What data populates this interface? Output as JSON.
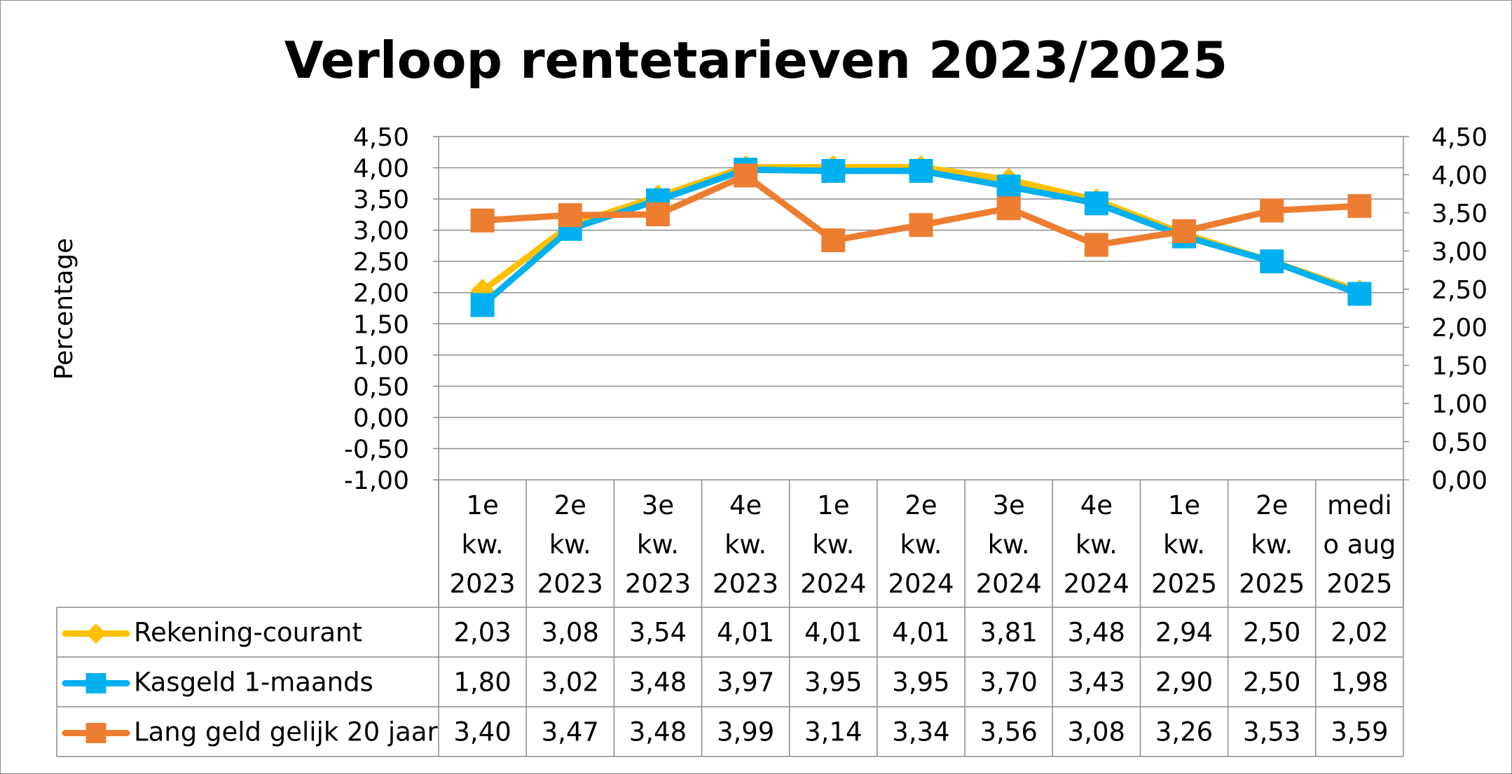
{
  "chart_data": {
    "type": "line",
    "title": "Verloop rentetarieven 2023/2025",
    "ylabel": "Percentage",
    "xlabel": "",
    "categories": [
      [
        "1e",
        "kw.",
        "2023"
      ],
      [
        "2e",
        "kw.",
        "2023"
      ],
      [
        "3e",
        "kw.",
        "2023"
      ],
      [
        "4e",
        "kw.",
        "2023"
      ],
      [
        "1e",
        "kw.",
        "2024"
      ],
      [
        "2e",
        "kw.",
        "2024"
      ],
      [
        "3e",
        "kw.",
        "2024"
      ],
      [
        "4e",
        "kw.",
        "2024"
      ],
      [
        "1e",
        "kw.",
        "2025"
      ],
      [
        "2e",
        "kw.",
        "2025"
      ],
      [
        "medi",
        "o aug",
        "2025"
      ]
    ],
    "y_left": {
      "min": -1.0,
      "max": 4.5,
      "step": 0.5,
      "ticks": [
        "-1,00",
        "-0,50",
        "0,00",
        "0,50",
        "1,00",
        "1,50",
        "2,00",
        "2,50",
        "3,00",
        "3,50",
        "4,00",
        "4,50"
      ]
    },
    "y_right": {
      "min": 0.0,
      "max": 4.5,
      "step": 0.5,
      "ticks": [
        "0,00",
        "0,50",
        "1,00",
        "1,50",
        "2,00",
        "2,50",
        "3,00",
        "3,50",
        "4,00",
        "4,50"
      ]
    },
    "grid": true,
    "legend": "data-table",
    "series": [
      {
        "name": "Rekening-courant",
        "color": "#FFC000",
        "marker": "diamond",
        "axis": "left",
        "values": [
          2.03,
          3.08,
          3.54,
          4.01,
          4.01,
          4.01,
          3.81,
          3.48,
          2.94,
          2.5,
          2.02
        ],
        "labels": [
          "2,03",
          "3,08",
          "3,54",
          "4,01",
          "4,01",
          "4,01",
          "3,81",
          "3,48",
          "2,94",
          "2,50",
          "2,02"
        ]
      },
      {
        "name": "Kasgeld 1-maands",
        "color": "#00B0F0",
        "marker": "square",
        "axis": "left",
        "values": [
          1.8,
          3.02,
          3.48,
          3.97,
          3.95,
          3.95,
          3.7,
          3.43,
          2.9,
          2.5,
          1.98
        ],
        "labels": [
          "1,80",
          "3,02",
          "3,48",
          "3,97",
          "3,95",
          "3,95",
          "3,70",
          "3,43",
          "2,90",
          "2,50",
          "1,98"
        ]
      },
      {
        "name": "Lang geld gelijk 20 jaar",
        "color": "#ED7D31",
        "marker": "square",
        "axis": "right",
        "values": [
          3.4,
          3.47,
          3.48,
          3.99,
          3.14,
          3.34,
          3.56,
          3.08,
          3.26,
          3.53,
          3.59
        ],
        "labels": [
          "3,40",
          "3,47",
          "3,48",
          "3,99",
          "3,14",
          "3,34",
          "3,56",
          "3,08",
          "3,26",
          "3,53",
          "3,59"
        ]
      }
    ]
  }
}
